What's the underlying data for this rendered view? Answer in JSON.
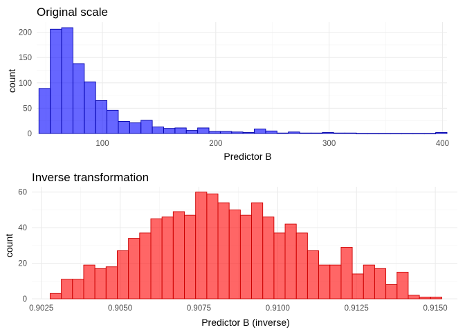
{
  "chart_data": [
    {
      "type": "histogram",
      "title": "Original scale",
      "xlabel": "Predictor B",
      "ylabel": "count",
      "fill": "#0000ff",
      "stroke": "#0000aa",
      "fill_opacity": 0.6,
      "xlim": [
        42,
        404
      ],
      "ylim": [
        0,
        220
      ],
      "xticks": [
        100,
        200,
        300,
        400
      ],
      "yticks": [
        0,
        50,
        100,
        150,
        200
      ],
      "grid": true,
      "bins": [
        {
          "x0": 44,
          "x1": 54,
          "count": 89
        },
        {
          "x0": 54,
          "x1": 64,
          "count": 206
        },
        {
          "x0": 64,
          "x1": 74,
          "count": 209
        },
        {
          "x0": 74,
          "x1": 84,
          "count": 138
        },
        {
          "x0": 84,
          "x1": 94,
          "count": 102
        },
        {
          "x0": 94,
          "x1": 104,
          "count": 65
        },
        {
          "x0": 104,
          "x1": 114,
          "count": 46
        },
        {
          "x0": 114,
          "x1": 124,
          "count": 24
        },
        {
          "x0": 124,
          "x1": 134,
          "count": 21
        },
        {
          "x0": 134,
          "x1": 144,
          "count": 26
        },
        {
          "x0": 144,
          "x1": 154,
          "count": 13
        },
        {
          "x0": 154,
          "x1": 164,
          "count": 10
        },
        {
          "x0": 164,
          "x1": 174,
          "count": 11
        },
        {
          "x0": 174,
          "x1": 184,
          "count": 6
        },
        {
          "x0": 184,
          "x1": 194,
          "count": 11
        },
        {
          "x0": 194,
          "x1": 204,
          "count": 4
        },
        {
          "x0": 204,
          "x1": 214,
          "count": 4
        },
        {
          "x0": 214,
          "x1": 224,
          "count": 3
        },
        {
          "x0": 224,
          "x1": 234,
          "count": 2
        },
        {
          "x0": 234,
          "x1": 244,
          "count": 9
        },
        {
          "x0": 244,
          "x1": 254,
          "count": 5
        },
        {
          "x0": 254,
          "x1": 264,
          "count": 1
        },
        {
          "x0": 264,
          "x1": 274,
          "count": 3
        },
        {
          "x0": 274,
          "x1": 284,
          "count": 1
        },
        {
          "x0": 284,
          "x1": 294,
          "count": 1
        },
        {
          "x0": 294,
          "x1": 304,
          "count": 2
        },
        {
          "x0": 304,
          "x1": 314,
          "count": 1
        },
        {
          "x0": 314,
          "x1": 324,
          "count": 1
        },
        {
          "x0": 324,
          "x1": 334,
          "count": 0
        },
        {
          "x0": 334,
          "x1": 344,
          "count": 0
        },
        {
          "x0": 344,
          "x1": 354,
          "count": 0
        },
        {
          "x0": 354,
          "x1": 364,
          "count": 0
        },
        {
          "x0": 364,
          "x1": 374,
          "count": 0
        },
        {
          "x0": 374,
          "x1": 384,
          "count": 0
        },
        {
          "x0": 384,
          "x1": 394,
          "count": 0
        },
        {
          "x0": 394,
          "x1": 404,
          "count": 2
        }
      ]
    },
    {
      "type": "histogram",
      "title": "Inverse transformation",
      "xlabel": "Predictor B (inverse)",
      "ylabel": "count",
      "fill": "#ff0000",
      "stroke": "#cc0000",
      "fill_opacity": 0.6,
      "xlim": [
        0.9022,
        0.9157
      ],
      "ylim": [
        0,
        63
      ],
      "xticks": [
        0.9025,
        0.905,
        0.9075,
        0.91,
        0.9125,
        0.915
      ],
      "xtick_labels": [
        "0.9025",
        "0.9050",
        "0.9075",
        "0.9100",
        "0.9125",
        "0.9150"
      ],
      "yticks": [
        0,
        20,
        40,
        60
      ],
      "grid": true,
      "bin_start": 0.90278,
      "bin_width": 0.000355,
      "counts": [
        3,
        11,
        11,
        19,
        17,
        18,
        27,
        34,
        37,
        45,
        46,
        49,
        47,
        60,
        59,
        54,
        50,
        47,
        54,
        46,
        37,
        42,
        37,
        27,
        19,
        19,
        29,
        14,
        19,
        17,
        8,
        15,
        2,
        1,
        1
      ]
    }
  ]
}
